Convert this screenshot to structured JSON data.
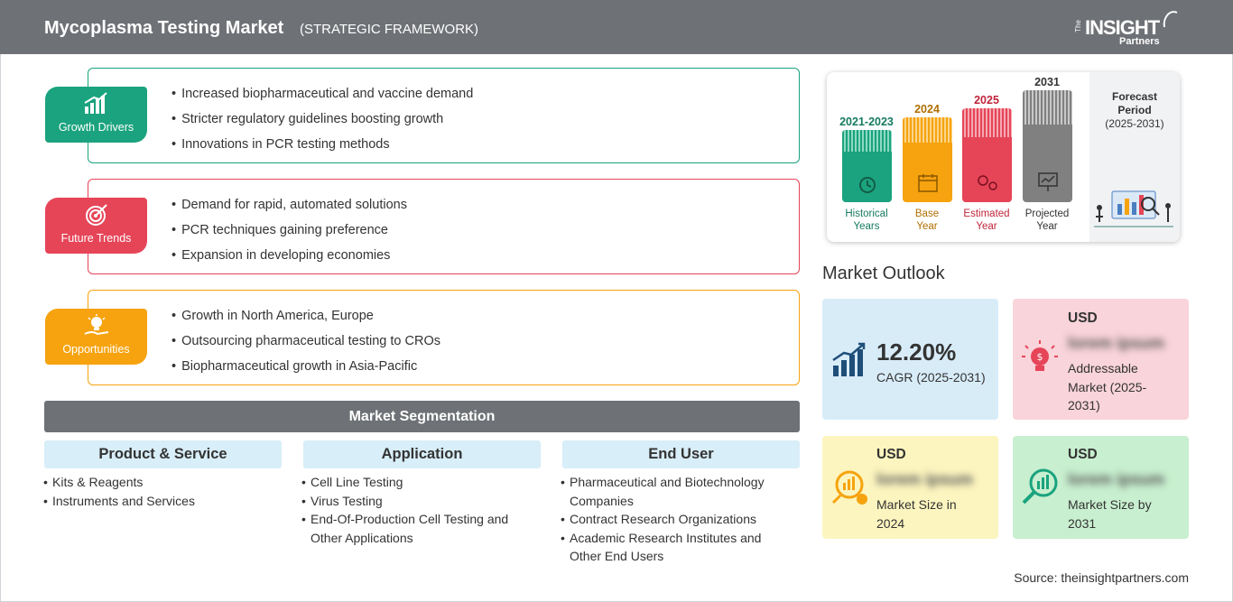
{
  "header": {
    "title": "Mycoplasma Testing Market",
    "subtitle": "(STRATEGIC FRAMEWORK)",
    "logo": {
      "the": "The",
      "insight": "INSIGHT",
      "partners": "Partners"
    }
  },
  "framework": [
    {
      "badge": "Growth Drivers",
      "color": "#1aa37e",
      "icon": "growth-chart-icon",
      "items": [
        "Increased biopharmaceutical and vaccine demand",
        "Stricter regulatory guidelines boosting growth",
        "Innovations in PCR testing methods"
      ]
    },
    {
      "badge": "Future Trends",
      "color": "#e64558",
      "icon": "target-icon",
      "items": [
        "Demand for rapid, automated solutions",
        "PCR techniques gaining preference",
        "Expansion in developing economies"
      ]
    },
    {
      "badge": "Opportunities",
      "color": "#f6a30f",
      "icon": "lightbulb-hand-icon",
      "items": [
        "Growth in North America, Europe",
        "Outsourcing pharmaceutical testing to CROs",
        "Biopharmaceutical growth in Asia-Pacific"
      ]
    }
  ],
  "segmentation": {
    "title": "Market Segmentation",
    "columns": [
      {
        "head": "Product & Service",
        "items": [
          "Kits & Reagents",
          "Instruments and Services"
        ]
      },
      {
        "head": "Application",
        "items": [
          "Cell Line Testing",
          "Virus Testing",
          "End-Of-Production Cell Testing and Other Applications"
        ]
      },
      {
        "head": "End User",
        "items": [
          "Pharmaceutical and Biotechnology Companies",
          "Contract Research Organizations",
          "Academic Research Institutes and Other End Users"
        ]
      }
    ]
  },
  "timeline": {
    "bars": [
      {
        "year": "2021-2023",
        "caption": [
          "Historical",
          "Years"
        ],
        "color": "#1aa37e",
        "icon": "history-icon"
      },
      {
        "year": "2024",
        "caption": [
          "Base",
          "Year"
        ],
        "color": "#f6a30f",
        "icon": "calendar-icon"
      },
      {
        "year": "2025",
        "caption": [
          "Estimated",
          "Year"
        ],
        "color": "#e64558",
        "icon": "gears-icon"
      },
      {
        "year": "2031",
        "caption": [
          "Projected",
          "Year"
        ],
        "color": "#808080",
        "icon": "presentation-icon"
      }
    ],
    "year_colors": [
      "#157a5f",
      "#b06f00",
      "#c0253a",
      "#333333"
    ],
    "forecast": [
      "Forecast",
      "Period",
      "(2025-2031)"
    ]
  },
  "outlook": {
    "title": "Market Outlook",
    "cagr": {
      "value": "12.20%",
      "label": "CAGR (2025-2031)",
      "bg": "#d8ecf8",
      "icon": "growth-bars-icon"
    },
    "addressable": {
      "usd": "USD",
      "value": "lorem ipsum",
      "label": [
        "Addressable",
        "Market (2025-",
        "2031)"
      ],
      "bg": "#f9d4da",
      "icon": "idea-bulb-icon"
    },
    "size2024": {
      "usd": "USD",
      "value": "lorem ipsum",
      "label": [
        "Market Size in",
        "2024"
      ],
      "bg": "#fdf5bf",
      "icon": "coin-chart-icon"
    },
    "size2031": {
      "usd": "USD",
      "value": "lorem ipsum",
      "label": [
        "Market Size by",
        "2031"
      ],
      "bg": "#c8efcf",
      "icon": "magnifier-chart-icon"
    }
  },
  "source": "Source: theinsightpartners.com"
}
